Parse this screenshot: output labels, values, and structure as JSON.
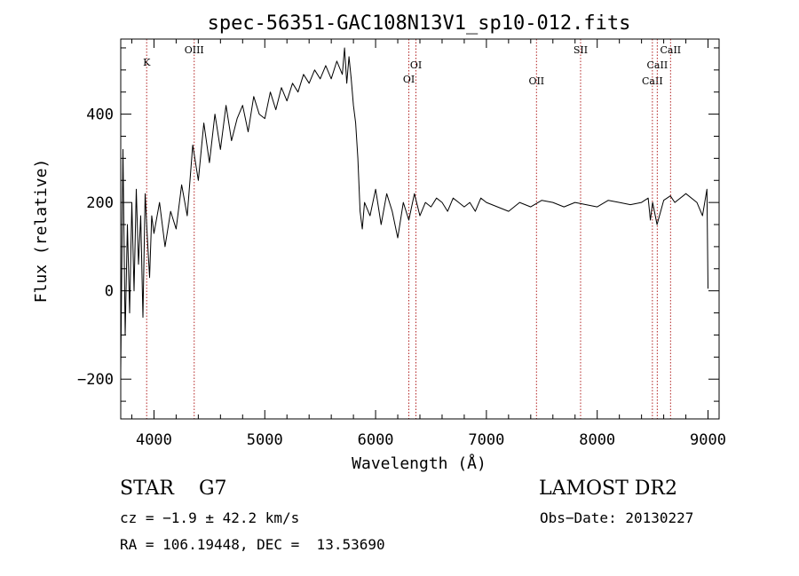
{
  "chart_data": {
    "type": "line",
    "title": "spec-56351-GAC108N13V1_sp10-012.fits",
    "xlabel": "Wavelength (Å)",
    "ylabel": "Flux (relative)",
    "xlim": [
      3700,
      9100
    ],
    "ylim": [
      -290,
      570
    ],
    "xticks": [
      4000,
      5000,
      6000,
      7000,
      8000,
      9000
    ],
    "yticks": [
      -200,
      0,
      200,
      400
    ],
    "grid": false,
    "spectral_lines": [
      {
        "label": "K",
        "x": 3934
      },
      {
        "label": "OIII",
        "x": 4363
      },
      {
        "label": "OI",
        "x": 6300
      },
      {
        "label": "OI",
        "x": 6364
      },
      {
        "label": "OII",
        "x": 7452
      },
      {
        "label": "SII",
        "x": 7850
      },
      {
        "label": "CaII",
        "x": 8498
      },
      {
        "label": "CaII",
        "x": 8542
      },
      {
        "label": "CaII",
        "x": 8662
      }
    ],
    "series": [
      {
        "x": [
          3700,
          3720,
          3740,
          3760,
          3780,
          3800,
          3820,
          3840,
          3860,
          3880,
          3900,
          3920,
          3940,
          3960,
          3980,
          4000,
          4050,
          4100,
          4150,
          4200,
          4250,
          4300,
          4350,
          4400,
          4450,
          4500,
          4550,
          4600,
          4650,
          4700,
          4750,
          4800,
          4850,
          4900,
          4950,
          5000,
          5050,
          5100,
          5150,
          5200,
          5250,
          5300,
          5350,
          5400,
          5450,
          5500,
          5550,
          5600,
          5650,
          5700,
          5720,
          5740,
          5760,
          5780,
          5800,
          5820,
          5840,
          5860,
          5880,
          5900,
          5950,
          6000,
          6050,
          6100,
          6150,
          6200,
          6250,
          6300,
          6350,
          6400,
          6450,
          6500,
          6550,
          6600,
          6650,
          6700,
          6750,
          6800,
          6850,
          6900,
          6950,
          7000,
          7100,
          7200,
          7300,
          7400,
          7500,
          7600,
          7700,
          7800,
          7900,
          8000,
          8100,
          8200,
          8300,
          8400,
          8460,
          8480,
          8500,
          8540,
          8600,
          8660,
          8700,
          8800,
          8900,
          8950,
          8990,
          9000
        ],
        "y": [
          -180,
          320,
          -100,
          150,
          -50,
          200,
          0,
          230,
          60,
          170,
          -60,
          220,
          120,
          30,
          170,
          130,
          200,
          100,
          180,
          140,
          240,
          170,
          330,
          250,
          380,
          290,
          400,
          320,
          420,
          340,
          390,
          420,
          360,
          440,
          400,
          390,
          450,
          410,
          460,
          430,
          470,
          450,
          490,
          470,
          500,
          480,
          510,
          480,
          520,
          490,
          550,
          470,
          530,
          480,
          420,
          380,
          300,
          180,
          140,
          200,
          170,
          230,
          150,
          220,
          180,
          120,
          200,
          160,
          220,
          170,
          200,
          190,
          210,
          200,
          180,
          210,
          200,
          190,
          200,
          180,
          210,
          200,
          190,
          180,
          200,
          190,
          205,
          200,
          190,
          200,
          195,
          190,
          205,
          200,
          195,
          200,
          210,
          160,
          200,
          150,
          205,
          215,
          200,
          220,
          200,
          170,
          230,
          5
        ]
      }
    ]
  },
  "info": {
    "object": "STAR    G7",
    "cz": "cz = −1.9 ± 42.2 km/s",
    "radec": "RA = 106.19448, DEC =  13.53690",
    "survey": "LAMOST DR2",
    "obsdate": "Obs−Date: 20130227"
  }
}
